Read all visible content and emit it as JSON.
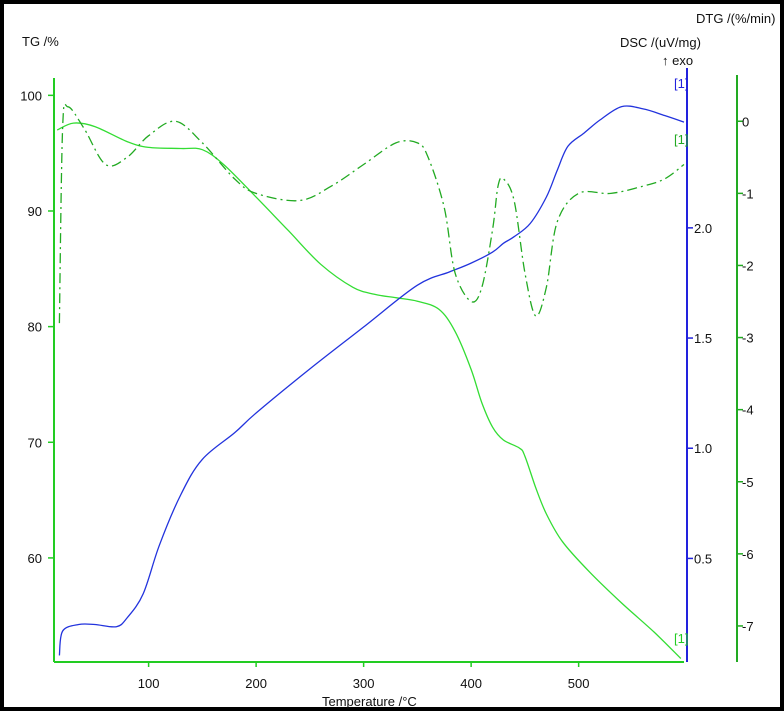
{
  "chart_data": {
    "type": "line",
    "x_axis": {
      "label": "Temperature /°C",
      "range": [
        12,
        598
      ],
      "ticks": [
        100,
        200,
        300,
        400,
        500
      ]
    },
    "y_axes": [
      {
        "id": "tg",
        "label": "TG /%",
        "side": "left",
        "range": [
          51.0,
          101.5
        ],
        "ticks": [
          60,
          70,
          80,
          90,
          100
        ],
        "color": "#22cc22"
      },
      {
        "id": "dsc",
        "label": "DSC /(uV/mg)",
        "side": "right",
        "range": [
          0.03,
          2.68
        ],
        "ticks": [
          0.5,
          1.0,
          1.5,
          2.0
        ],
        "tick_labels": [
          "0.5",
          "1.0",
          "1.5",
          "2.0"
        ],
        "annotation": "↑ exo",
        "color": "#2222dd"
      },
      {
        "id": "dtg",
        "label": "DTG /(%/min)",
        "side": "right-outer",
        "range": [
          -7.5,
          0.6
        ],
        "ticks": [
          0,
          -1,
          -2,
          -3,
          -4,
          -5,
          -6,
          -7
        ],
        "color": "#22aa22"
      }
    ],
    "series": [
      {
        "axis": "tg",
        "style": "solid",
        "color": "#33dd33",
        "x": [
          15,
          30,
          50,
          80,
          100,
          130,
          150,
          170,
          200,
          230,
          260,
          290,
          310,
          330,
          350,
          370,
          385,
          400,
          410,
          420,
          430,
          445,
          450,
          460,
          470,
          485,
          510,
          540,
          570,
          595
        ],
        "y": [
          97,
          97.6,
          97.3,
          96,
          95.5,
          95.4,
          95.3,
          94,
          91.2,
          88.3,
          85.4,
          83.4,
          82.8,
          82.5,
          82.2,
          81.5,
          79.6,
          76.3,
          73.4,
          71.3,
          70.2,
          69.5,
          68.8,
          66.1,
          63.8,
          61.4,
          58.8,
          56.1,
          53.6,
          51.3
        ]
      },
      {
        "axis": "dsc",
        "style": "solid",
        "color": "#2233dd",
        "x": [
          17,
          20,
          35,
          50,
          70,
          80,
          95,
          110,
          130,
          150,
          180,
          200,
          250,
          300,
          350,
          380,
          400,
          420,
          430,
          440,
          455,
          470,
          480,
          490,
          505,
          520,
          540,
          560,
          580,
          598
        ],
        "y": [
          0.06,
          0.17,
          0.2,
          0.2,
          0.19,
          0.23,
          0.34,
          0.56,
          0.79,
          0.95,
          1.07,
          1.16,
          1.36,
          1.55,
          1.74,
          1.8,
          1.84,
          1.89,
          1.93,
          1.96,
          2.02,
          2.14,
          2.26,
          2.37,
          2.43,
          2.49,
          2.55,
          2.54,
          2.51,
          2.48
        ]
      },
      {
        "axis": "dtg",
        "style": "dashdot",
        "color": "#22aa22",
        "x": [
          17,
          20,
          25,
          40,
          60,
          80,
          100,
          125,
          150,
          180,
          200,
          240,
          270,
          300,
          330,
          350,
          360,
          375,
          385,
          400,
          410,
          420,
          425,
          430,
          440,
          450,
          460,
          470,
          480,
          500,
          530,
          560,
          580,
          598
        ],
        "y": [
          -2.8,
          -0.1,
          0.2,
          -0.1,
          -0.6,
          -0.5,
          -0.2,
          0.0,
          -0.3,
          -0.8,
          -1.0,
          -1.1,
          -0.9,
          -0.6,
          -0.3,
          -0.3,
          -0.5,
          -1.2,
          -2.1,
          -2.5,
          -2.3,
          -1.5,
          -0.9,
          -0.8,
          -1.1,
          -2.1,
          -2.7,
          -2.3,
          -1.4,
          -1.0,
          -1.0,
          -0.9,
          -0.8,
          -0.6
        ]
      }
    ],
    "annotations": [
      "[1]",
      "[1]",
      "[1]"
    ]
  }
}
